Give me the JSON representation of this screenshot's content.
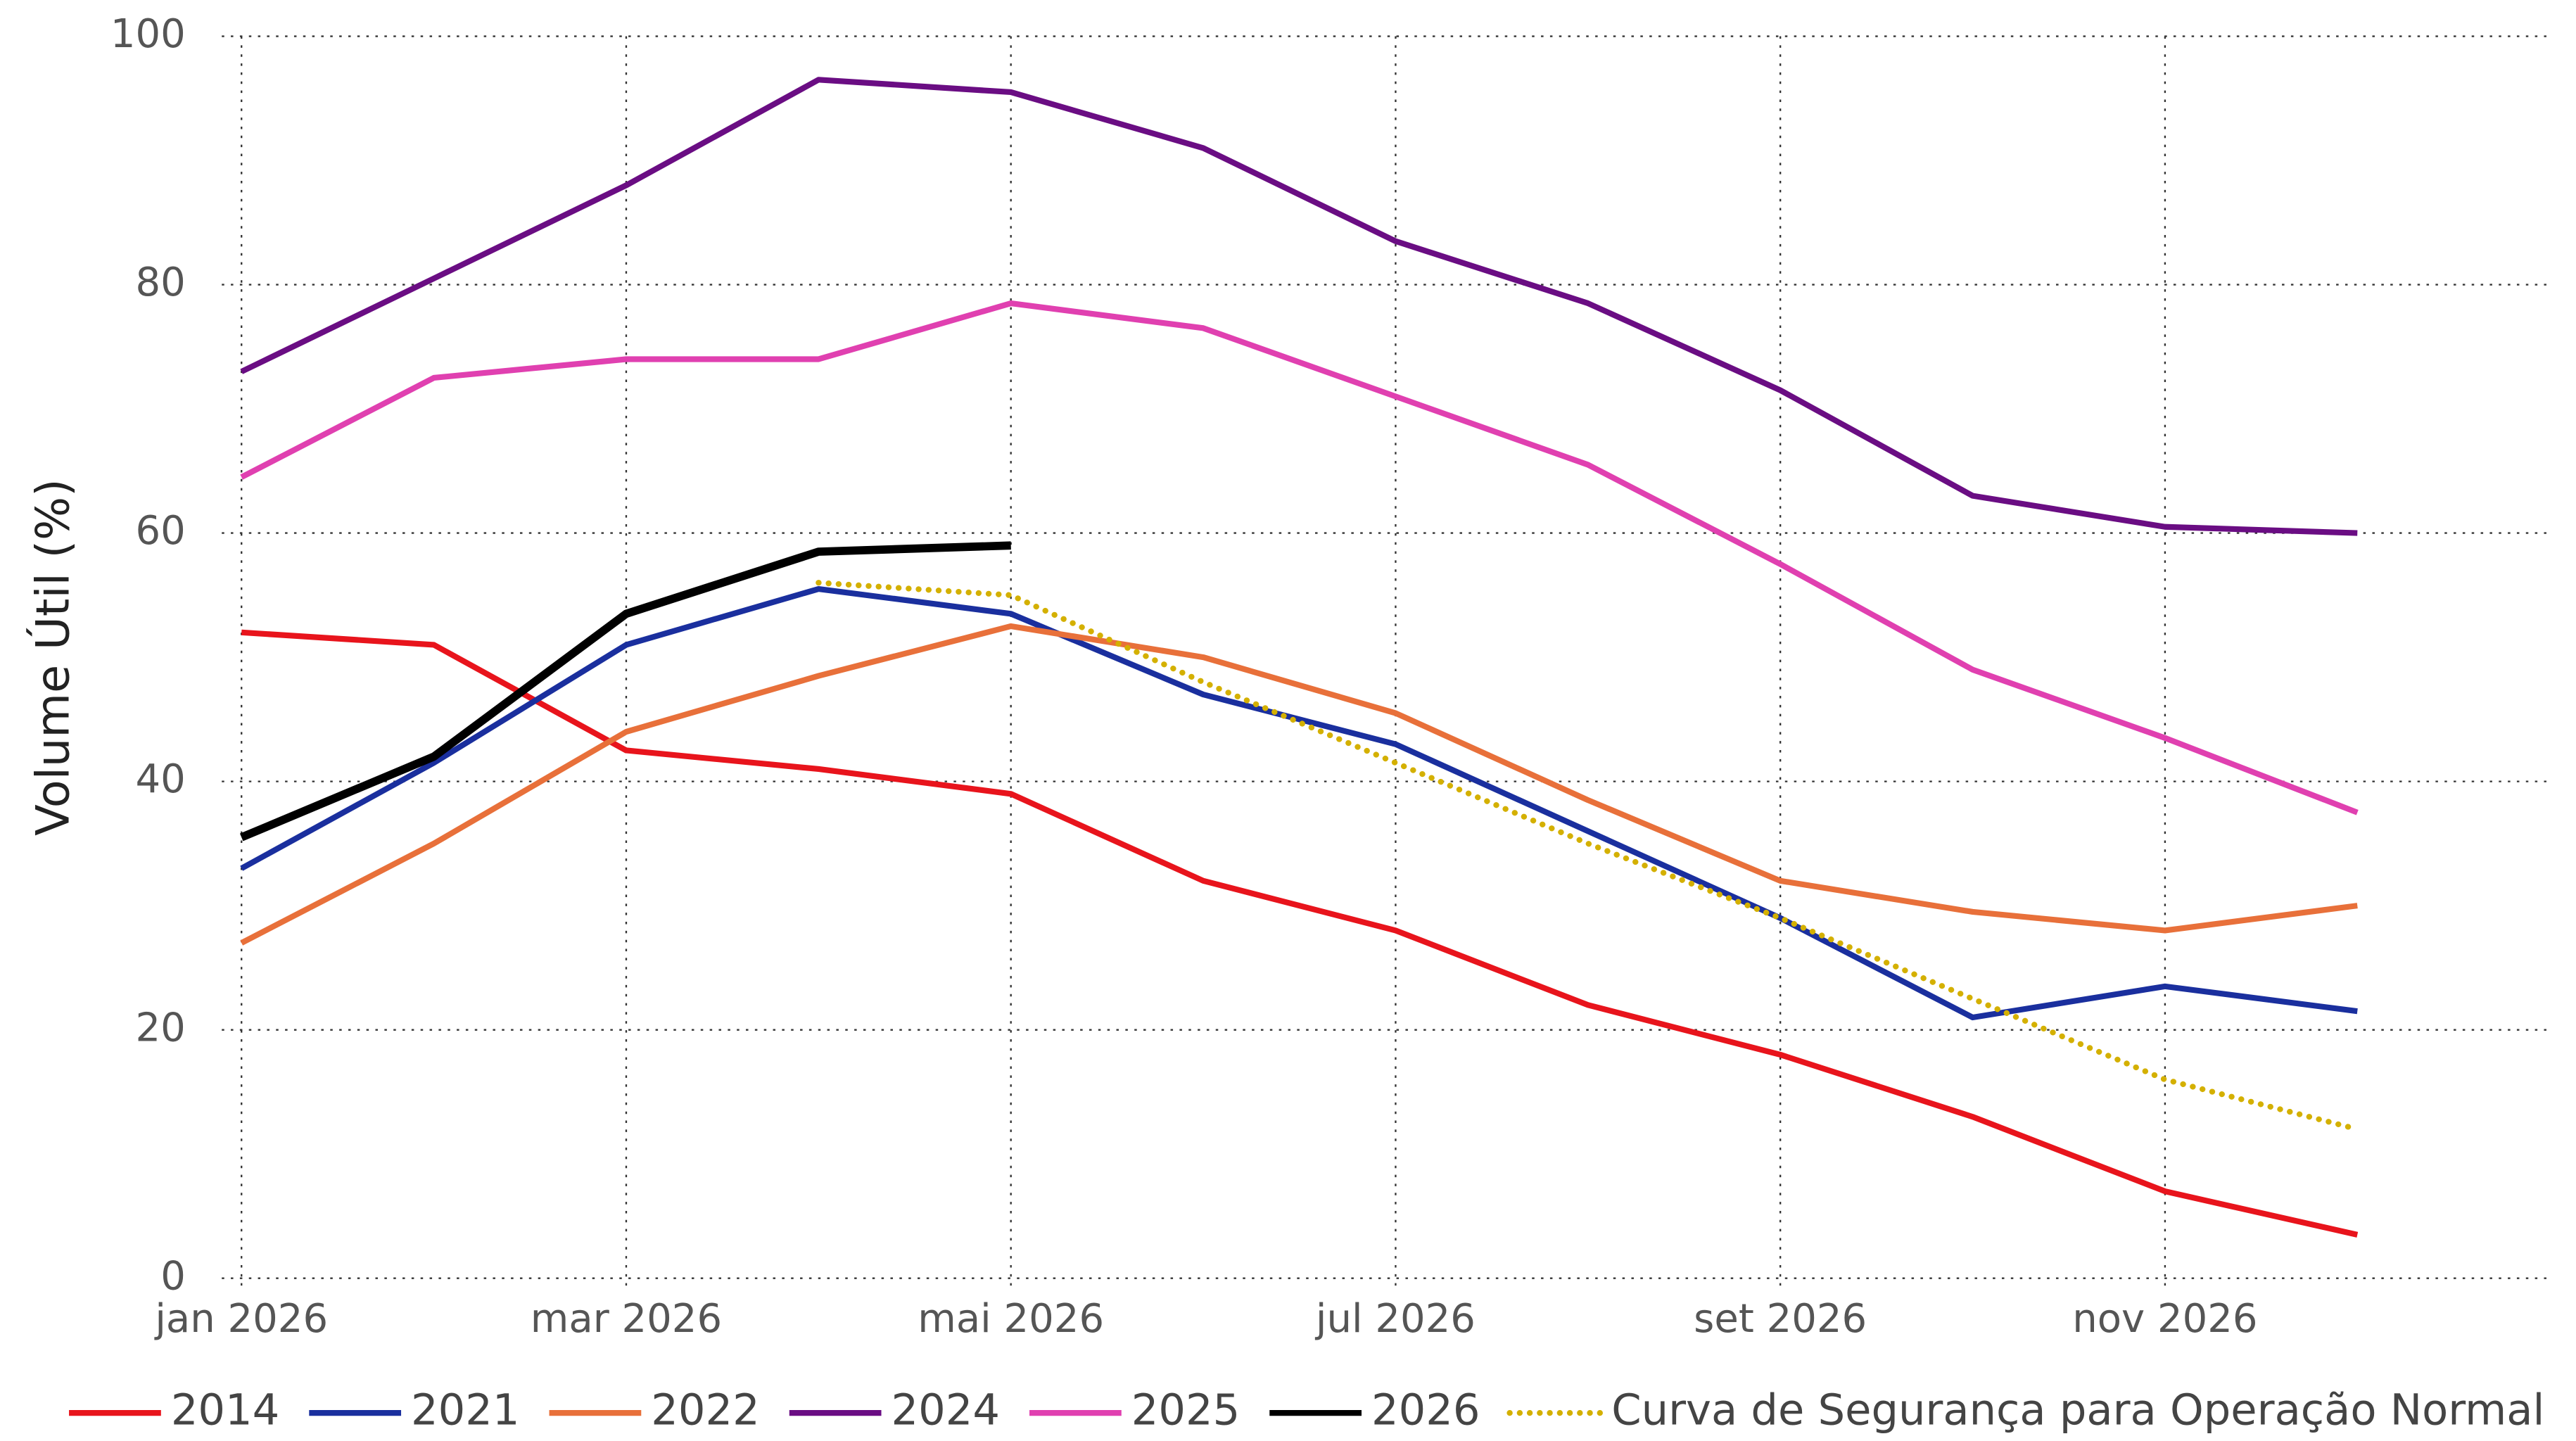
{
  "chart_data": {
    "type": "line",
    "y_label": "Volume Útil (%)",
    "x": [
      "2026-01",
      "2026-02",
      "2026-03",
      "2026-04",
      "2026-05",
      "2026-06",
      "2026-07",
      "2026-08",
      "2026-09",
      "2026-10",
      "2026-11",
      "2026-12"
    ],
    "xlim": [
      "2026-01",
      "2027-01"
    ],
    "xticks": [
      {
        "value": "2026-01",
        "label": "jan 2026"
      },
      {
        "value": "2026-03",
        "label": "mar 2026"
      },
      {
        "value": "2026-05",
        "label": "mai 2026"
      },
      {
        "value": "2026-07",
        "label": "jul 2026"
      },
      {
        "value": "2026-09",
        "label": "set 2026"
      },
      {
        "value": "2026-11",
        "label": "nov 2026"
      }
    ],
    "ylim": [
      0,
      100
    ],
    "yticks": [
      0,
      20,
      40,
      60,
      80,
      100
    ],
    "grid": true,
    "legend": "bottom",
    "series": [
      {
        "name": "2014",
        "color": "#e8141c",
        "style": "solid",
        "values": [
          52,
          51,
          42.5,
          41,
          39,
          32,
          28,
          22,
          18,
          13,
          7,
          3.5
        ]
      },
      {
        "name": "2021",
        "color": "#1a2f9e",
        "style": "solid",
        "values": [
          33,
          41.5,
          51,
          55.5,
          53.5,
          47,
          43,
          36,
          29,
          21,
          23.5,
          21.5
        ]
      },
      {
        "name": "2022",
        "color": "#e8703a",
        "style": "solid",
        "values": [
          27,
          35,
          44,
          48.5,
          52.5,
          50,
          45.5,
          38.5,
          32,
          29.5,
          28,
          30
        ]
      },
      {
        "name": "2024",
        "color": "#6a0d83",
        "style": "solid",
        "values": [
          73,
          80.5,
          88,
          96.5,
          95.5,
          91,
          83.5,
          78.5,
          71.5,
          63,
          60.5,
          60
        ]
      },
      {
        "name": "2025",
        "color": "#e040b0",
        "style": "solid",
        "values": [
          64.5,
          72.5,
          74,
          74,
          78.5,
          76.5,
          71,
          65.5,
          57.5,
          49,
          43.5,
          37.5
        ]
      },
      {
        "name": "2026",
        "color": "#000000",
        "style": "solid",
        "values": [
          35.5,
          42,
          53.5,
          58.5,
          59,
          null,
          null,
          null,
          null,
          null,
          null,
          null
        ]
      },
      {
        "name": "Curva de Segurança para Operação Normal",
        "color": "#d4b000",
        "style": "dotted",
        "values": [
          null,
          null,
          null,
          56,
          55,
          48,
          41.5,
          35,
          29,
          22.5,
          16,
          12
        ]
      }
    ]
  }
}
